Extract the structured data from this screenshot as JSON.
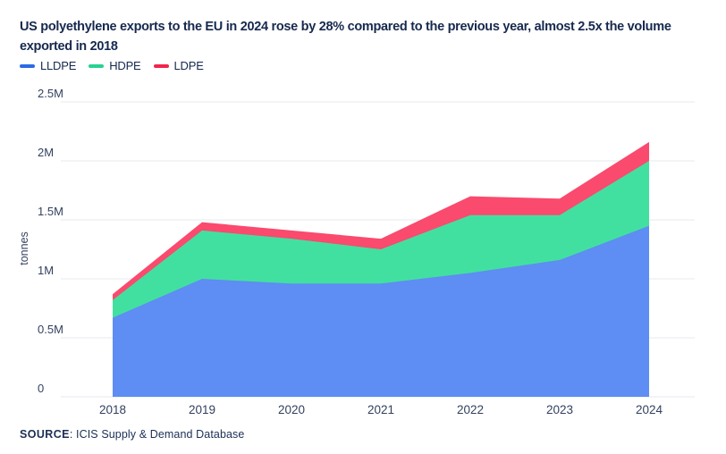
{
  "header": {
    "title_line1": "US polyethylene exports to the EU in 2024 rose by 28% compared to the previous year, almost 2.5x the volume",
    "title_line2": "exported in 2018"
  },
  "source": {
    "label": "SOURCE",
    "text": ": ICIS Supply & Demand Database"
  },
  "colors": {
    "title_navy": "#16294E",
    "tick_text": "#33415F",
    "gridline": "#E7E8EC",
    "lldpe_fill": "#5E8DF3",
    "lldpe_line": "#2D6BE3",
    "hdpe_fill": "#42E0A0",
    "hdpe_line": "#27D291",
    "ldpe_fill": "#FA4A6D",
    "ldpe_line": "#F1254C"
  },
  "chart_data": {
    "type": "area",
    "stacked": true,
    "title": "US polyethylene exports to the EU in 2024 rose by 28% compared to the previous year, almost 2.5x the volume exported in 2018",
    "xlabel": "",
    "ylabel": "tonnes",
    "categories": [
      "2018",
      "2019",
      "2020",
      "2021",
      "2022",
      "2023",
      "2024"
    ],
    "units": "million tonnes",
    "ylim": [
      0,
      2.5
    ],
    "grid": true,
    "legend_position": "top-left",
    "yticks": [
      {
        "value": 0,
        "label": "0"
      },
      {
        "value": 0.5,
        "label": "0.5M"
      },
      {
        "value": 1,
        "label": "1M"
      },
      {
        "value": 1.5,
        "label": "1.5M"
      },
      {
        "value": 2,
        "label": "2M"
      },
      {
        "value": 2.5,
        "label": "2.5M"
      }
    ],
    "series": [
      {
        "name": "LLDPE",
        "fill": "#5E8DF3",
        "line": "#2D6BE3",
        "values": [
          0.67,
          1.0,
          0.96,
          0.96,
          1.05,
          1.16,
          1.45
        ]
      },
      {
        "name": "HDPE",
        "fill": "#42E0A0",
        "line": "#27D291",
        "values": [
          0.15,
          0.41,
          0.38,
          0.29,
          0.49,
          0.38,
          0.55
        ]
      },
      {
        "name": "LDPE",
        "fill": "#FA4A6D",
        "line": "#F1254C",
        "values": [
          0.05,
          0.07,
          0.07,
          0.09,
          0.16,
          0.14,
          0.16
        ]
      }
    ],
    "stacked_totals": [
      0.87,
      1.48,
      1.41,
      1.34,
      1.7,
      1.68,
      2.16
    ]
  }
}
